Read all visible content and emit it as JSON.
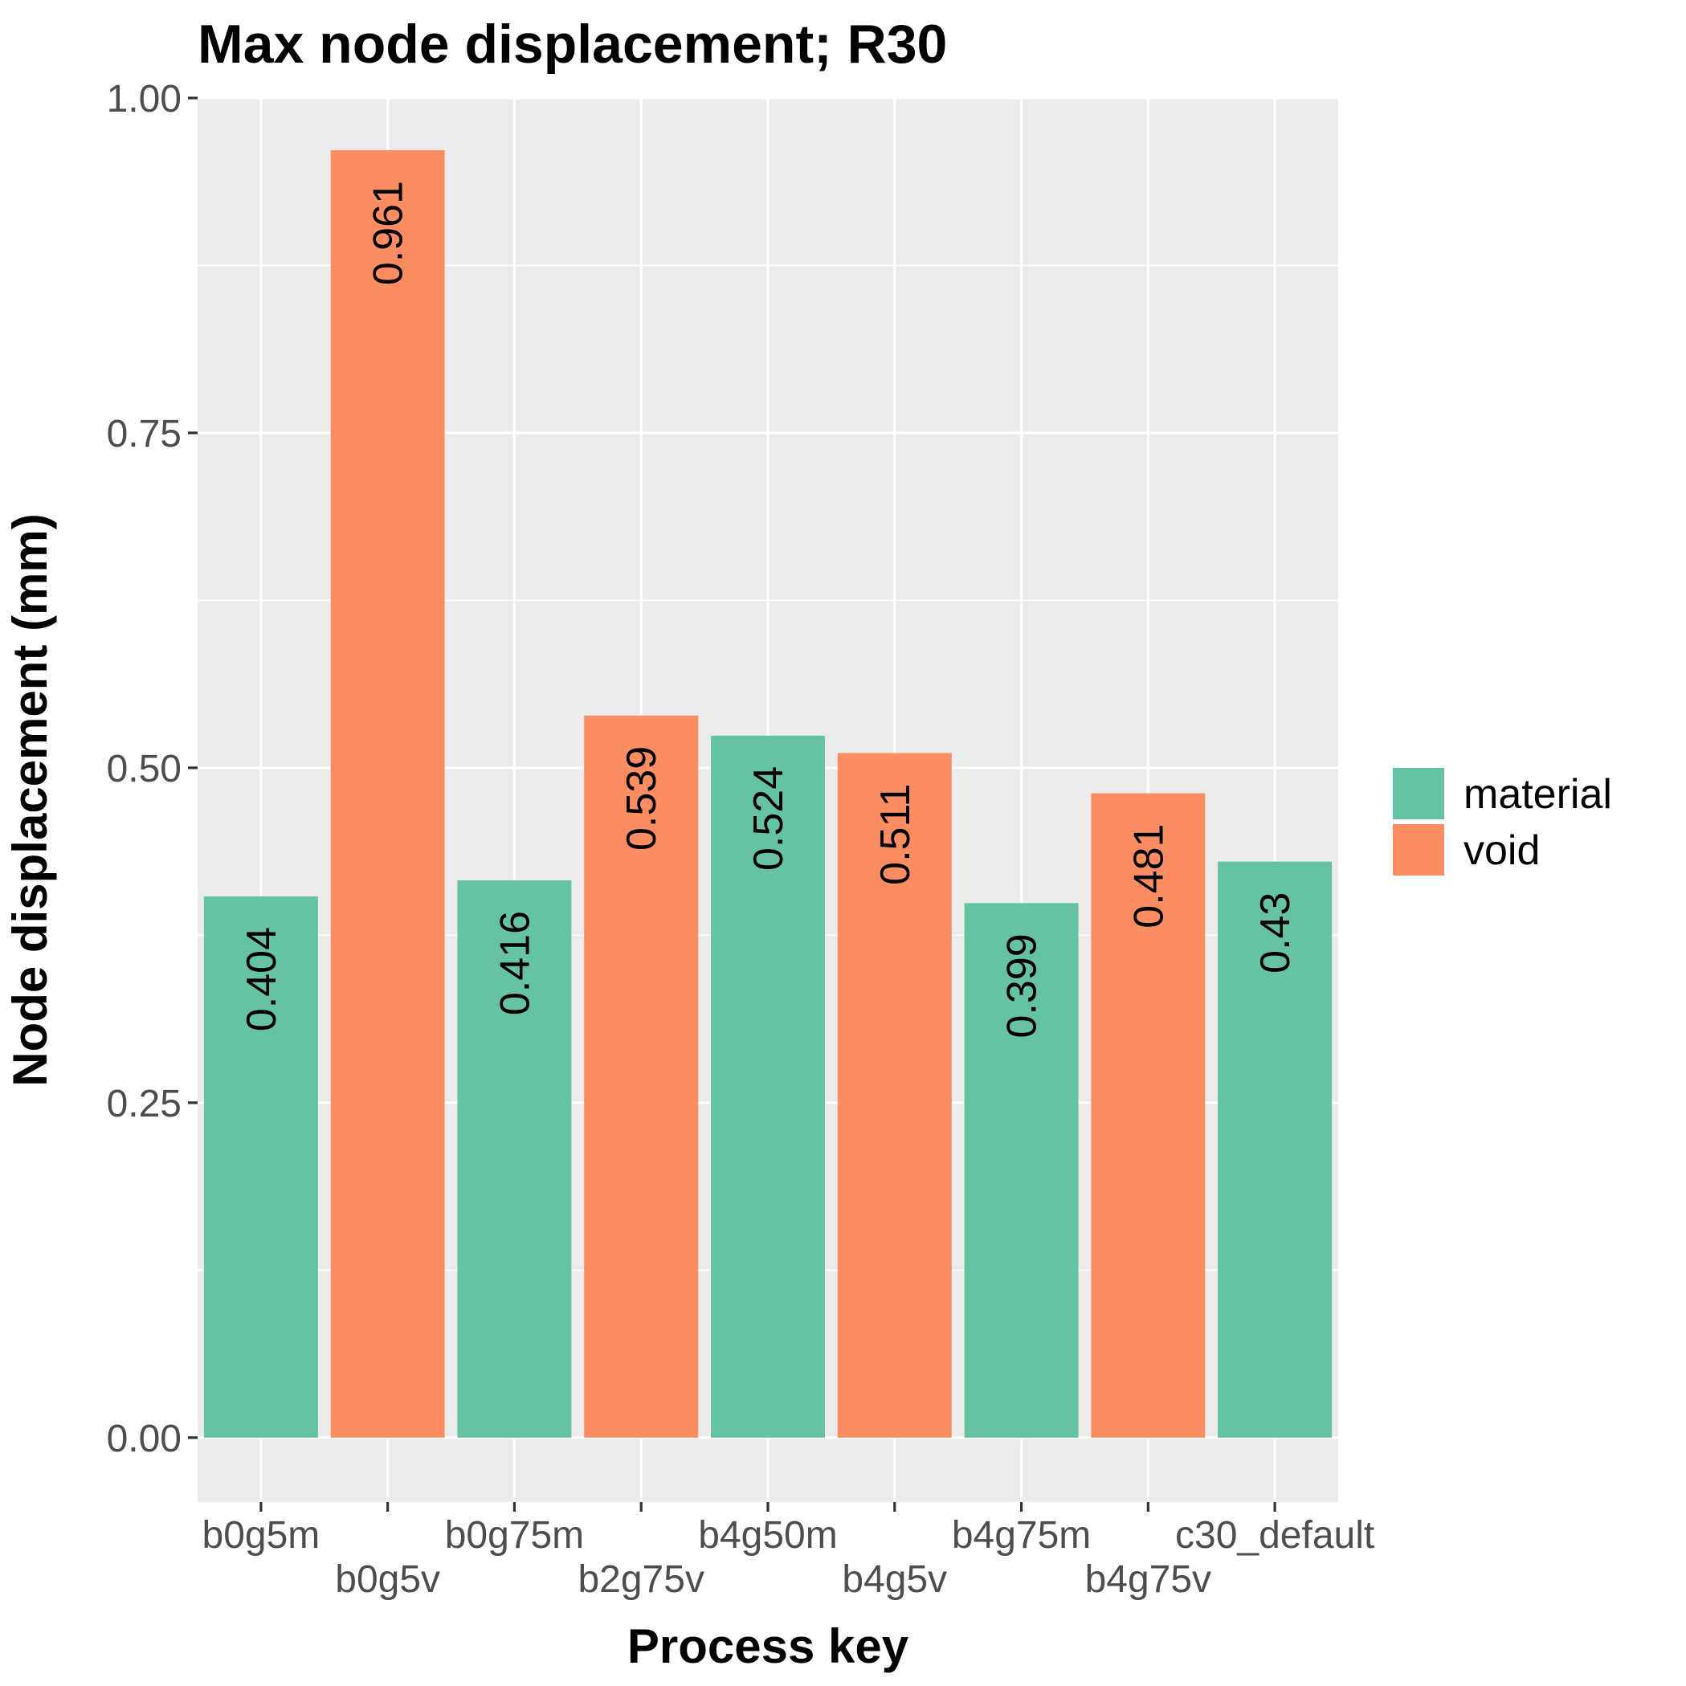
{
  "chart_data": {
    "type": "bar",
    "title": "Max node displacement; R30",
    "xlabel": "Process key",
    "ylabel": "Node displacement (mm)",
    "ylim": [
      -0.0481,
      1.0
    ],
    "yticks": [
      0.0,
      0.25,
      0.5,
      0.75,
      1.0
    ],
    "ytick_labels": [
      "0.00",
      "0.25",
      "0.50",
      "0.75",
      "1.00"
    ],
    "grid": true,
    "legend": {
      "position": "right",
      "entries": [
        {
          "label": "material",
          "color": "#66c2a5"
        },
        {
          "label": "void",
          "color": "#fc8d62"
        }
      ]
    },
    "categories": [
      "b0g5m",
      "b0g5v",
      "b0g75m",
      "b2g75v",
      "b4g50m",
      "b4g5v",
      "b4g75m",
      "b4g75v",
      "c30_default"
    ],
    "values": [
      0.404,
      0.961,
      0.416,
      0.539,
      0.524,
      0.511,
      0.399,
      0.481,
      0.43
    ],
    "data_labels": [
      "0.404",
      "0.961",
      "0.416",
      "0.539",
      "0.524",
      "0.511",
      "0.399",
      "0.481",
      "0.43"
    ],
    "groups": [
      "material",
      "void",
      "material",
      "void",
      "material",
      "void",
      "material",
      "void",
      "material"
    ],
    "colors": {
      "material": "#66c2a5",
      "void": "#fc8d62",
      "panel_background": "#ebebeb",
      "grid": "#ffffff",
      "tick_text": "#4d4d4d"
    }
  }
}
